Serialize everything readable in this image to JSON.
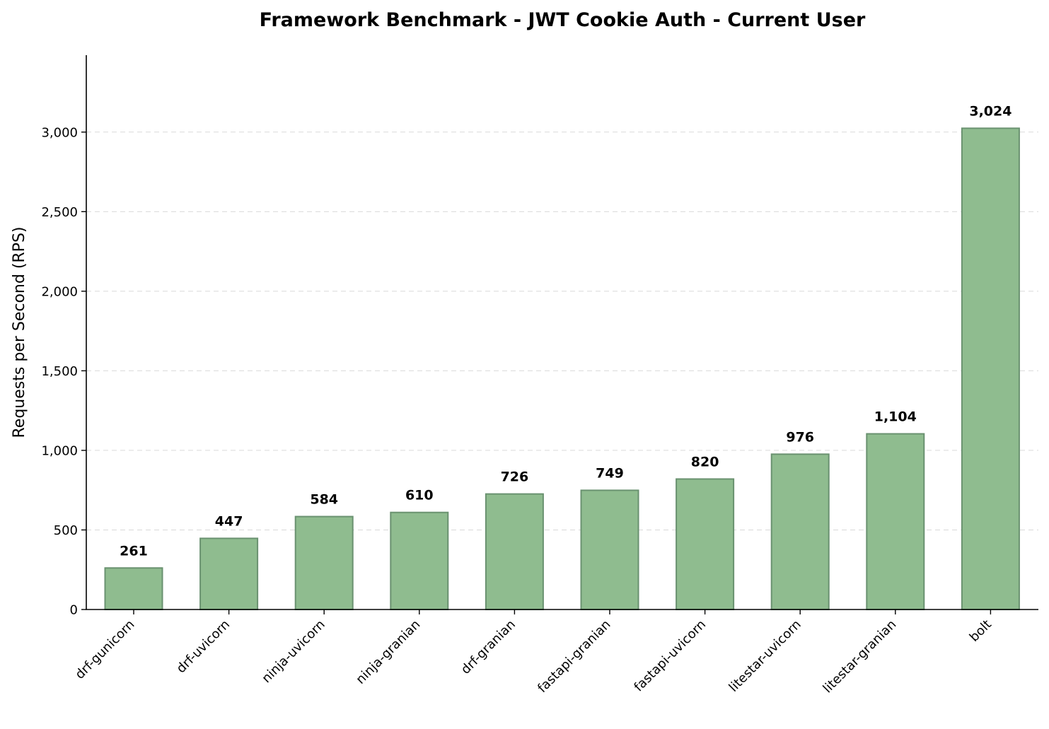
{
  "chart_data": {
    "type": "bar",
    "title": "Framework Benchmark - JWT Cookie Auth - Current User",
    "xlabel": "",
    "ylabel": "Requests per Second (RPS)",
    "categories": [
      "drf-gunicorn",
      "drf-uvicorn",
      "ninja-uvicorn",
      "ninja-granian",
      "drf-granian",
      "fastapi-granian",
      "fastapi-uvicorn",
      "litestar-uvicorn",
      "litestar-granian",
      "bolt"
    ],
    "values": [
      261,
      447,
      584,
      610,
      726,
      749,
      820,
      976,
      1104,
      3024
    ],
    "value_labels": [
      "261",
      "447",
      "584",
      "610",
      "726",
      "749",
      "820",
      "976",
      "1,104",
      "3,024"
    ],
    "yticks": [
      0,
      500,
      1000,
      1500,
      2000,
      2500,
      3000
    ],
    "ytick_labels": [
      "0",
      "500",
      "1,000",
      "1,500",
      "2,000",
      "2,500",
      "3,000"
    ],
    "ylim": [
      0,
      3480
    ],
    "grid": "y-dashed",
    "bar_color": "#8fbc8f",
    "bar_edge_color": "#6a9270"
  }
}
